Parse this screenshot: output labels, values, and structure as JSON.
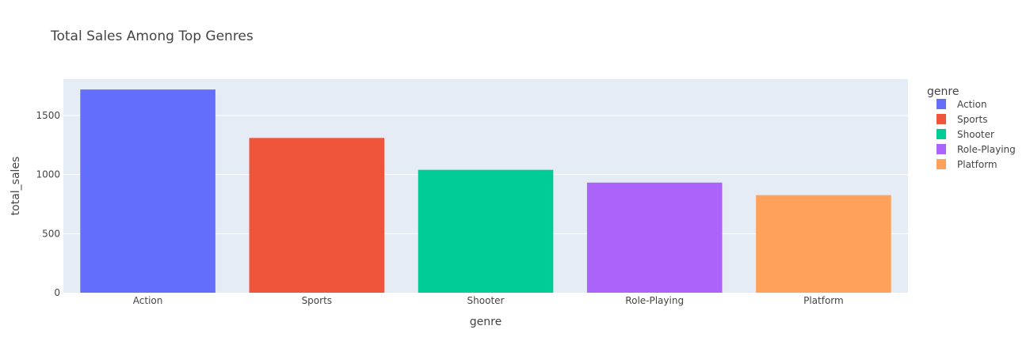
{
  "chart_data": {
    "type": "bar",
    "title": "Total Sales Among Top Genres",
    "xlabel": "genre",
    "ylabel": "total_sales",
    "categories": [
      "Action",
      "Sports",
      "Shooter",
      "Role-Playing",
      "Platform"
    ],
    "values": [
      1720,
      1310,
      1040,
      932,
      826
    ],
    "colors": [
      "#636efa",
      "#ef553b",
      "#00cc96",
      "#ab63fa",
      "#ffa15a"
    ],
    "ylim": [
      0,
      1808
    ],
    "yticks": [
      0,
      500,
      1000,
      1500
    ],
    "grid": true,
    "legend_position": "right",
    "legend_title": "genre",
    "plot_bg": "#e5ecf6",
    "grid_color": "#ffffff"
  }
}
